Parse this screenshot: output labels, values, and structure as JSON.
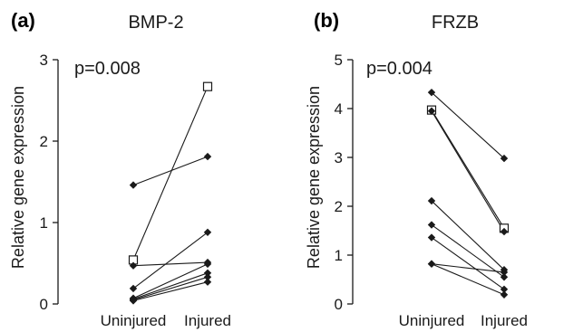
{
  "panels": [
    {
      "letter": "(a)",
      "annotation": "p=0.008"
    },
    {
      "letter": "(b)",
      "annotation": "p=0.004"
    }
  ],
  "chart_data": [
    {
      "type": "line",
      "title": "BMP-2",
      "xlabel": "",
      "ylabel": "Relative gene expression",
      "categories": [
        "Uninjured",
        "Injured"
      ],
      "ylim": [
        0,
        3
      ],
      "yticks": [
        "0",
        "1",
        "2",
        "3"
      ],
      "grid": false,
      "series": [
        {
          "values": [
            1.46,
            1.81
          ],
          "marker": "diamond"
        },
        {
          "values": [
            0.54,
            2.67
          ],
          "marker": "square-open"
        },
        {
          "values": [
            0.47,
            0.51
          ],
          "marker": "diamond"
        },
        {
          "values": [
            0.19,
            0.88
          ],
          "marker": "diamond"
        },
        {
          "values": [
            0.07,
            0.49
          ],
          "marker": "diamond"
        },
        {
          "values": [
            0.06,
            0.38
          ],
          "marker": "diamond"
        },
        {
          "values": [
            0.05,
            0.33
          ],
          "marker": "diamond"
        },
        {
          "values": [
            0.04,
            0.27
          ],
          "marker": "diamond"
        }
      ]
    },
    {
      "type": "line",
      "title": "FRZB",
      "xlabel": "",
      "ylabel": "Relative gene expression",
      "categories": [
        "Uninjured",
        "Injured"
      ],
      "ylim": [
        0,
        5
      ],
      "yticks": [
        "0",
        "1",
        "2",
        "3",
        "4",
        "5"
      ],
      "grid": false,
      "series": [
        {
          "values": [
            4.33,
            2.98
          ],
          "marker": "diamond"
        },
        {
          "values": [
            3.97,
            1.55
          ],
          "marker": "square-open"
        },
        {
          "values": [
            3.95,
            1.48
          ],
          "marker": "diamond"
        },
        {
          "values": [
            2.11,
            0.7
          ],
          "marker": "diamond"
        },
        {
          "values": [
            1.62,
            0.55
          ],
          "marker": "diamond"
        },
        {
          "values": [
            1.36,
            0.3
          ],
          "marker": "diamond"
        },
        {
          "values": [
            0.82,
            0.65
          ],
          "marker": "diamond"
        },
        {
          "values": [
            0.82,
            0.19
          ],
          "marker": "diamond"
        }
      ]
    }
  ]
}
